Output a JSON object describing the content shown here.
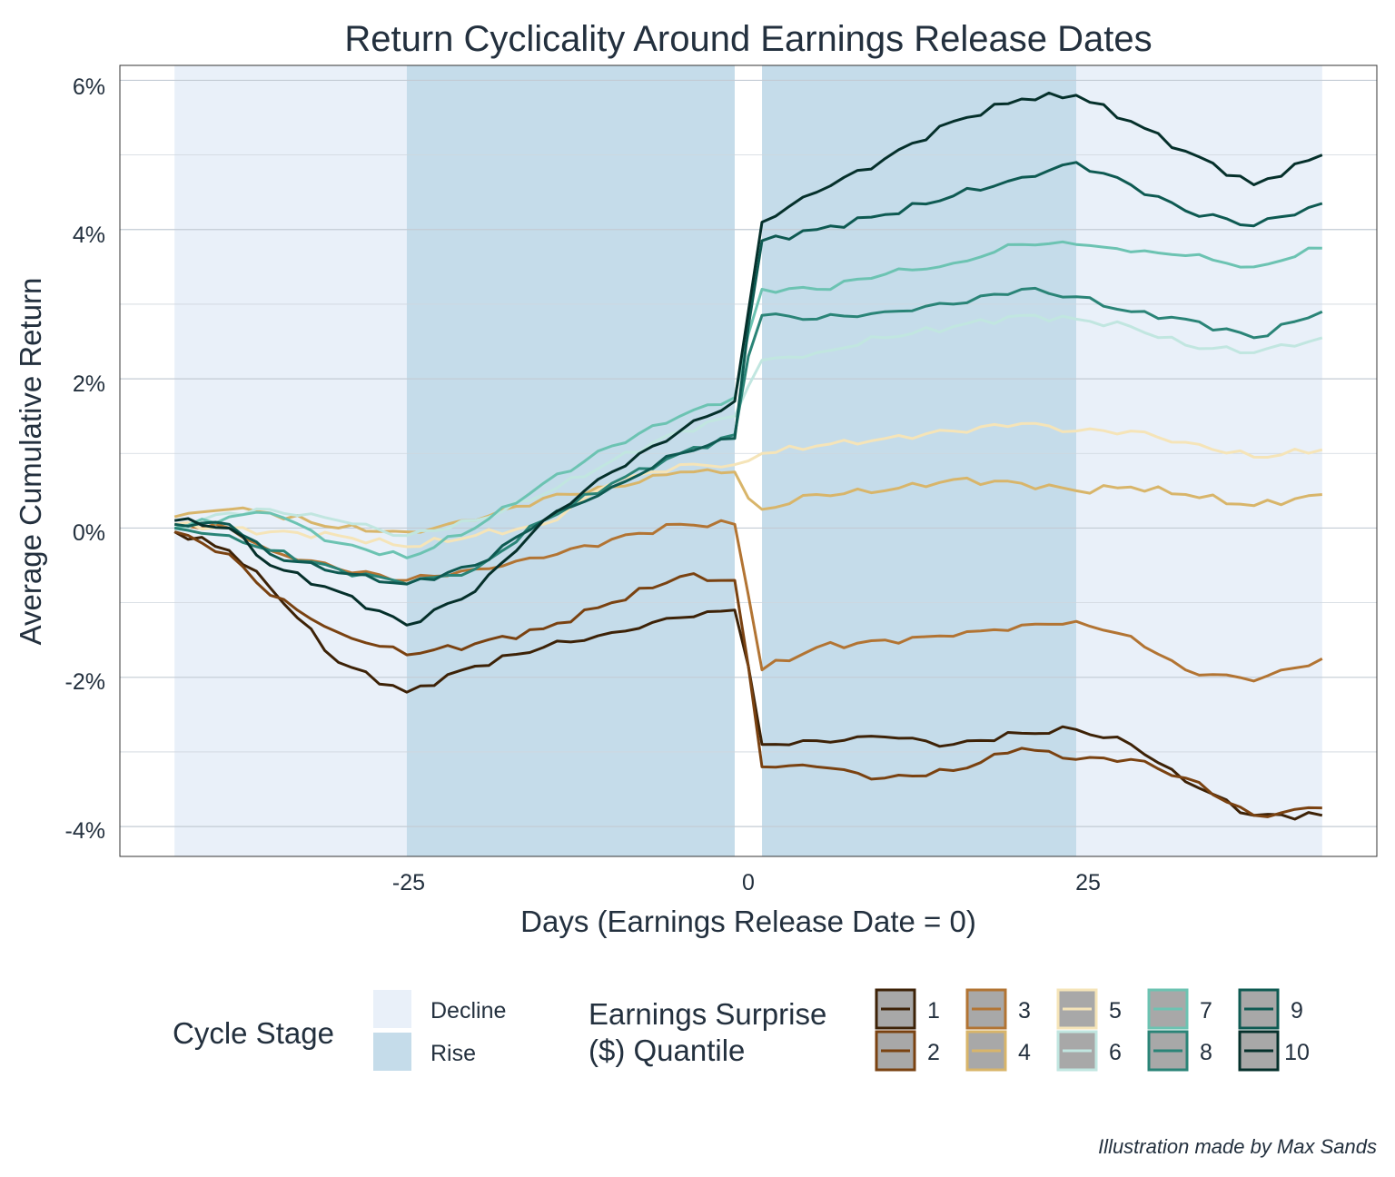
{
  "chart_data": {
    "type": "line",
    "title": "Return Cyclicality Around Earnings Release Dates",
    "xlabel": "Days (Earnings Release Date = 0)",
    "ylabel": "Average Cumulative Return",
    "xlim": [
      -46,
      46
    ],
    "ylim": [
      -4.4,
      6.2
    ],
    "x_ticks": [
      -25,
      0,
      25
    ],
    "x_tick_labels": [
      "-25",
      "0",
      "25"
    ],
    "y_ticks": [
      -4,
      -2,
      0,
      2,
      4,
      6
    ],
    "y_tick_labels": [
      "-4%",
      "-2%",
      "0%",
      "2%",
      "4%",
      "6%"
    ],
    "grid": true,
    "legend_position": "bottom",
    "caption": "Illustration made by Max Sands",
    "cycle_legend": {
      "title": "Cycle Stage",
      "items": [
        {
          "label": "Decline",
          "color": "#e9f0f9"
        },
        {
          "label": "Rise",
          "color": "#c5dcea"
        }
      ]
    },
    "bands": [
      {
        "stage": "Decline",
        "x0": -42,
        "x1": -25
      },
      {
        "stage": "Rise",
        "x0": -25,
        "x1": -1
      },
      {
        "stage": "Rise",
        "x0": 1,
        "x1": 24
      },
      {
        "stage": "Decline",
        "x0": 24,
        "x1": 42
      }
    ],
    "series_legend": {
      "title_line1": "Earnings Surprise",
      "title_line2": "($) Quantile"
    },
    "x_knots": [
      -42,
      -38,
      -35,
      -30,
      -25,
      -20,
      -15,
      -10,
      -5,
      -1,
      0,
      1,
      5,
      10,
      15,
      20,
      24,
      28,
      32,
      37,
      42
    ],
    "series": [
      {
        "name": "1",
        "color": "#3d2207",
        "values": [
          -0.05,
          -0.3,
          -0.8,
          -1.8,
          -2.2,
          -1.85,
          -1.6,
          -1.4,
          -1.2,
          -1.1,
          -1.85,
          -2.9,
          -2.85,
          -2.8,
          -2.9,
          -2.75,
          -2.7,
          -2.9,
          -3.4,
          -3.85,
          -3.85
        ]
      },
      {
        "name": "2",
        "color": "#7a4211",
        "values": [
          -0.05,
          -0.35,
          -0.9,
          -1.4,
          -1.7,
          -1.55,
          -1.35,
          -1.0,
          -0.65,
          -0.7,
          -1.85,
          -3.2,
          -3.2,
          -3.35,
          -3.25,
          -2.95,
          -3.1,
          -3.1,
          -3.35,
          -3.85,
          -3.75
        ]
      },
      {
        "name": "3",
        "color": "#b27433",
        "values": [
          0.05,
          0.0,
          -0.3,
          -0.55,
          -0.7,
          -0.55,
          -0.4,
          -0.15,
          0.05,
          0.05,
          -0.9,
          -1.9,
          -1.6,
          -1.5,
          -1.45,
          -1.3,
          -1.25,
          -1.45,
          -1.9,
          -2.05,
          -1.75
        ]
      },
      {
        "name": "4",
        "color": "#d8b56a",
        "values": [
          0.15,
          0.25,
          0.2,
          0.0,
          -0.05,
          0.1,
          0.4,
          0.55,
          0.75,
          0.75,
          0.4,
          0.25,
          0.45,
          0.5,
          0.65,
          0.6,
          0.5,
          0.55,
          0.45,
          0.3,
          0.45
        ]
      },
      {
        "name": "5",
        "color": "#f5e4b8",
        "values": [
          0.05,
          0.0,
          -0.05,
          -0.1,
          -0.25,
          -0.1,
          0.05,
          0.6,
          0.85,
          0.85,
          0.9,
          1.0,
          1.1,
          1.2,
          1.3,
          1.4,
          1.3,
          1.3,
          1.15,
          0.95,
          1.05
        ]
      },
      {
        "name": "6",
        "color": "#c1e6e0",
        "values": [
          0.0,
          0.2,
          0.25,
          0.1,
          -0.1,
          0.1,
          0.45,
          0.9,
          1.3,
          1.5,
          1.9,
          2.25,
          2.35,
          2.55,
          2.7,
          2.85,
          2.8,
          2.7,
          2.45,
          2.35,
          2.55
        ]
      },
      {
        "name": "7",
        "color": "#6cc3b2",
        "values": [
          0.0,
          0.15,
          0.2,
          -0.2,
          -0.4,
          0.0,
          0.6,
          1.1,
          1.5,
          1.75,
          2.6,
          3.2,
          3.2,
          3.4,
          3.55,
          3.8,
          3.8,
          3.7,
          3.65,
          3.5,
          3.75
        ]
      },
      {
        "name": "8",
        "color": "#2a8477",
        "values": [
          0.0,
          -0.1,
          -0.3,
          -0.55,
          -0.75,
          -0.55,
          0.1,
          0.6,
          1.0,
          1.25,
          2.3,
          2.85,
          2.8,
          2.9,
          3.0,
          3.2,
          3.1,
          2.9,
          2.8,
          2.55,
          2.9
        ]
      },
      {
        "name": "9",
        "color": "#0e5a52",
        "values": [
          0.05,
          0.05,
          -0.35,
          -0.6,
          -0.75,
          -0.5,
          0.1,
          0.55,
          1.0,
          1.2,
          2.7,
          3.85,
          4.0,
          4.2,
          4.45,
          4.7,
          4.9,
          4.6,
          4.25,
          4.05,
          4.35
        ]
      },
      {
        "name": "10",
        "color": "#05302b",
        "values": [
          0.1,
          0.0,
          -0.5,
          -0.85,
          -1.3,
          -0.85,
          0.1,
          0.75,
          1.3,
          1.7,
          2.9,
          4.1,
          4.5,
          4.95,
          5.45,
          5.75,
          5.8,
          5.45,
          5.05,
          4.6,
          5.0
        ]
      }
    ]
  }
}
